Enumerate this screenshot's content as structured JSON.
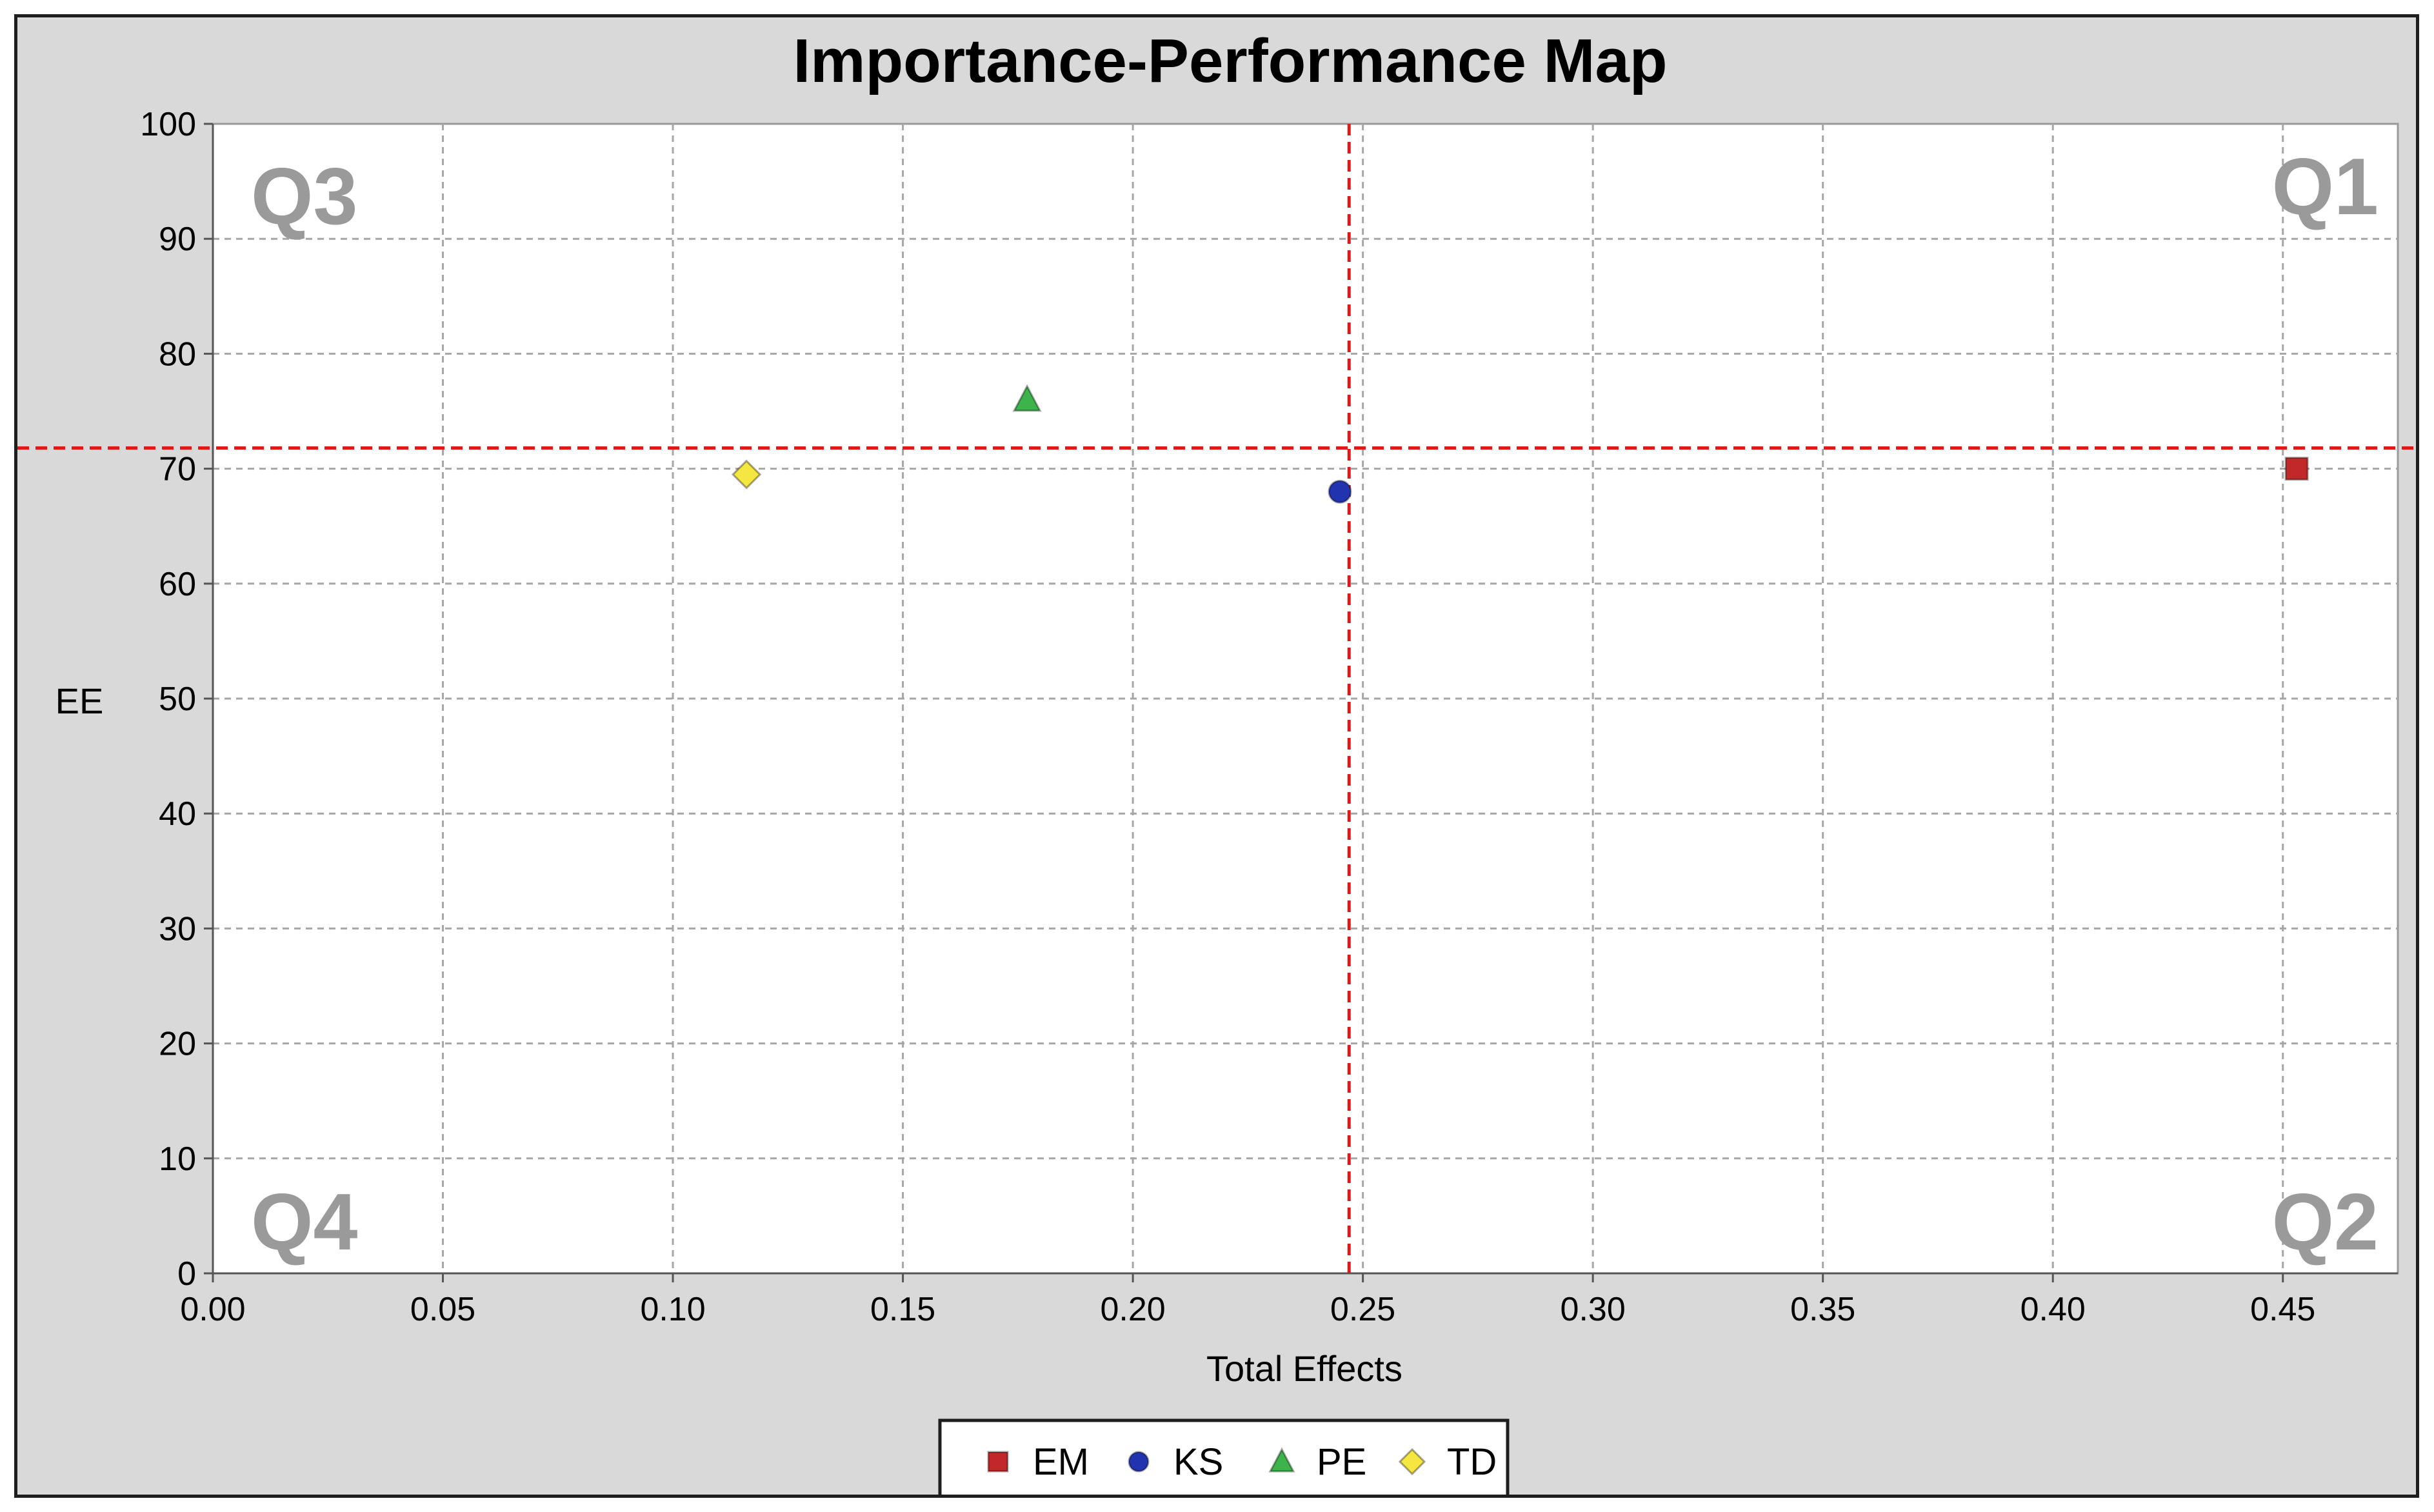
{
  "chart_data": {
    "type": "scatter",
    "title": "Importance-Performance Map",
    "xlabel": "Total Effects",
    "ylabel": "EE",
    "xlim": [
      0,
      0.475
    ],
    "ylim": [
      0,
      100
    ],
    "x_ticks": [
      "0.00",
      "0.05",
      "0.10",
      "0.15",
      "0.20",
      "0.25",
      "0.30",
      "0.35",
      "0.40",
      "0.45"
    ],
    "y_ticks": [
      "0",
      "10",
      "20",
      "30",
      "40",
      "50",
      "60",
      "70",
      "80",
      "90",
      "100"
    ],
    "grid": true,
    "series": [
      {
        "name": "EM",
        "x": 0.453,
        "y": 70.0,
        "marker": "square",
        "color": "#c0282a"
      },
      {
        "name": "KS",
        "x": 0.245,
        "y": 68.0,
        "marker": "circle",
        "color": "#2233b0"
      },
      {
        "name": "PE",
        "x": 0.177,
        "y": 76.0,
        "marker": "triangle",
        "color": "#3cb44b"
      },
      {
        "name": "TD",
        "x": 0.116,
        "y": 69.5,
        "marker": "diamond",
        "color": "#f5e642"
      }
    ],
    "reference_lines": {
      "x": 0.247,
      "y": 71.8,
      "color": "#e01818",
      "style": "dashed"
    },
    "quadrant_labels": {
      "top_left": "Q3",
      "top_right": "Q1",
      "bottom_left": "Q4",
      "bottom_right": "Q2"
    },
    "legend_position": "bottom-center"
  }
}
